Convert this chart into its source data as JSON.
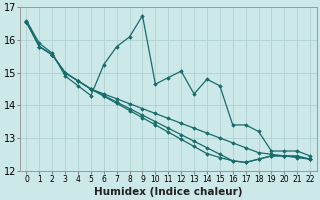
{
  "title": "",
  "xlabel": "Humidex (Indice chaleur)",
  "ylabel": "",
  "background_color": "#cde8e8",
  "grid_color": "#b0d0d0",
  "line_color": "#1a6b6b",
  "xlim": [
    -0.5,
    22.5
  ],
  "ylim": [
    12,
    17
  ],
  "yticks": [
    12,
    13,
    14,
    15,
    16,
    17
  ],
  "xticks": [
    0,
    1,
    2,
    3,
    4,
    5,
    6,
    7,
    8,
    9,
    10,
    11,
    12,
    13,
    14,
    15,
    16,
    17,
    18,
    19,
    20,
    21,
    22
  ],
  "line1_x": [
    0,
    1,
    2,
    3,
    4,
    5,
    6,
    7,
    8,
    9,
    10,
    11,
    12,
    13,
    14,
    15,
    16,
    17,
    18,
    19,
    20,
    21,
    22
  ],
  "line1_y": [
    16.6,
    15.9,
    15.6,
    14.9,
    14.6,
    14.3,
    15.25,
    15.8,
    16.1,
    16.75,
    14.65,
    14.85,
    15.05,
    14.35,
    14.8,
    14.6,
    13.4,
    13.4,
    13.2,
    12.6,
    12.6,
    12.6,
    12.45
  ],
  "line2_x": [
    0,
    1,
    2,
    3,
    4,
    5,
    6,
    7,
    8,
    9,
    10,
    11,
    12,
    13,
    14,
    15,
    16,
    17,
    18,
    19,
    20,
    21,
    22
  ],
  "line2_y": [
    16.55,
    15.8,
    15.55,
    15.0,
    14.75,
    14.5,
    14.35,
    14.2,
    14.05,
    13.9,
    13.75,
    13.6,
    13.45,
    13.3,
    13.15,
    13.0,
    12.85,
    12.7,
    12.55,
    12.5,
    12.45,
    12.4,
    12.35
  ],
  "line3_x": [
    0,
    1,
    2,
    3,
    4,
    5,
    6,
    7,
    8,
    9,
    10,
    11,
    12,
    13,
    14,
    15,
    16,
    17,
    18,
    19,
    20,
    21,
    22
  ],
  "line3_y": [
    16.55,
    15.8,
    15.55,
    15.0,
    14.75,
    14.5,
    14.3,
    14.1,
    13.9,
    13.7,
    13.5,
    13.3,
    13.1,
    12.9,
    12.7,
    12.5,
    12.3,
    12.25,
    12.35,
    12.45,
    12.45,
    12.45,
    12.35
  ],
  "line4_x": [
    0,
    1,
    2,
    3,
    4,
    5,
    6,
    7,
    8,
    9,
    10,
    11,
    12,
    13,
    14,
    15,
    16,
    17,
    18,
    19,
    20,
    21,
    22
  ],
  "line4_y": [
    16.55,
    15.8,
    15.55,
    15.0,
    14.75,
    14.5,
    14.28,
    14.06,
    13.84,
    13.62,
    13.4,
    13.18,
    12.96,
    12.74,
    12.52,
    12.4,
    12.3,
    12.25,
    12.35,
    12.45,
    12.45,
    12.42,
    12.35
  ],
  "xlabel_fontsize": 7.5,
  "xtick_fontsize": 5.5,
  "ytick_fontsize": 7.0,
  "marker_size": 1.8,
  "line_width": 0.9
}
